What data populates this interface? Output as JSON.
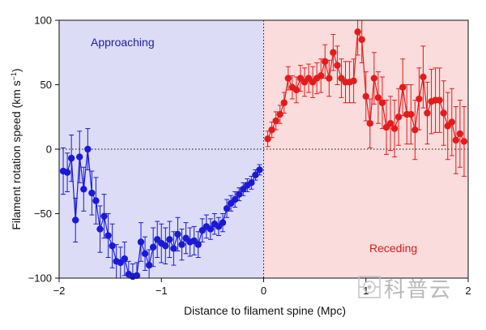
{
  "chart_data": {
    "type": "scatter",
    "title": "",
    "xlabel": "Distance to filament spine (Mpc)",
    "ylabel_main": "Filament rotation speed (km s",
    "ylabel_sup": "−1",
    "ylabel_close": ")",
    "xlim": [
      -2,
      2
    ],
    "ylim": [
      -100,
      100
    ],
    "xticks": [
      -2,
      -1,
      0,
      1,
      2
    ],
    "xtick_labels": [
      "−2",
      "−1",
      "0",
      "1",
      "2"
    ],
    "yticks": [
      -100,
      -50,
      0,
      50,
      100
    ],
    "ytick_labels": [
      "−100",
      "−50",
      "0",
      "50",
      "100"
    ],
    "reference_lines": [
      {
        "axis": "y",
        "value": 0,
        "style": "dotted"
      },
      {
        "axis": "x",
        "value": 0,
        "style": "dotted"
      }
    ],
    "regions": [
      {
        "label": "Approaching",
        "x_range": [
          -2,
          0
        ],
        "fill": "#dcdcf7",
        "text_color": "#1c1cb4"
      },
      {
        "label": "Receding",
        "x_range": [
          0,
          2
        ],
        "fill": "#fbdcdc",
        "text_color": "#d81b1b"
      }
    ],
    "series": [
      {
        "color": "#1a1ad6",
        "points": [
          {
            "x": -1.96,
            "y": -17,
            "err": 18
          },
          {
            "x": -1.92,
            "y": -18,
            "err": 15
          },
          {
            "x": -1.88,
            "y": -7,
            "err": 18
          },
          {
            "x": -1.84,
            "y": -55,
            "err": 17
          },
          {
            "x": -1.8,
            "y": -6,
            "err": 20
          },
          {
            "x": -1.76,
            "y": -31,
            "err": 17
          },
          {
            "x": -1.72,
            "y": 0,
            "err": 16
          },
          {
            "x": -1.68,
            "y": -34,
            "err": 17
          },
          {
            "x": -1.64,
            "y": -40,
            "err": 18
          },
          {
            "x": -1.6,
            "y": -62,
            "err": 18
          },
          {
            "x": -1.56,
            "y": -52,
            "err": 17
          },
          {
            "x": -1.52,
            "y": -67,
            "err": 17
          },
          {
            "x": -1.48,
            "y": -75,
            "err": 17
          },
          {
            "x": -1.44,
            "y": -87,
            "err": 13
          },
          {
            "x": -1.4,
            "y": -88,
            "err": 12
          },
          {
            "x": -1.36,
            "y": -85,
            "err": 13
          },
          {
            "x": -1.32,
            "y": -97,
            "err": 10
          },
          {
            "x": -1.28,
            "y": -99,
            "err": 10
          },
          {
            "x": -1.24,
            "y": -98,
            "err": 10
          },
          {
            "x": -1.2,
            "y": -72,
            "err": 15
          },
          {
            "x": -1.16,
            "y": -81,
            "err": 13
          },
          {
            "x": -1.12,
            "y": -90,
            "err": 12
          },
          {
            "x": -1.08,
            "y": -76,
            "err": 15
          },
          {
            "x": -1.04,
            "y": -70,
            "err": 14
          },
          {
            "x": -1.0,
            "y": -73,
            "err": 15
          },
          {
            "x": -0.96,
            "y": -75,
            "err": 14
          },
          {
            "x": -0.92,
            "y": -70,
            "err": 14
          },
          {
            "x": -0.88,
            "y": -77,
            "err": 13
          },
          {
            "x": -0.84,
            "y": -66,
            "err": 13
          },
          {
            "x": -0.8,
            "y": -74,
            "err": 12
          },
          {
            "x": -0.76,
            "y": -69,
            "err": 12
          },
          {
            "x": -0.72,
            "y": -72,
            "err": 11
          },
          {
            "x": -0.68,
            "y": -71,
            "err": 11
          },
          {
            "x": -0.64,
            "y": -74,
            "err": 10
          },
          {
            "x": -0.6,
            "y": -63,
            "err": 9
          },
          {
            "x": -0.56,
            "y": -60,
            "err": 9
          },
          {
            "x": -0.52,
            "y": -62,
            "err": 8
          },
          {
            "x": -0.48,
            "y": -58,
            "err": 8
          },
          {
            "x": -0.44,
            "y": -60,
            "err": 7
          },
          {
            "x": -0.4,
            "y": -57,
            "err": 7
          },
          {
            "x": -0.36,
            "y": -46,
            "err": 7
          },
          {
            "x": -0.32,
            "y": -42,
            "err": 6
          },
          {
            "x": -0.28,
            "y": -39,
            "err": 6
          },
          {
            "x": -0.24,
            "y": -35,
            "err": 5
          },
          {
            "x": -0.2,
            "y": -31,
            "err": 5
          },
          {
            "x": -0.16,
            "y": -28,
            "err": 5
          },
          {
            "x": -0.12,
            "y": -26,
            "err": 5
          },
          {
            "x": -0.08,
            "y": -20,
            "err": 4
          },
          {
            "x": -0.04,
            "y": -16,
            "err": 4
          }
        ]
      },
      {
        "color": "#e41b1b",
        "points": [
          {
            "x": 0.04,
            "y": 8,
            "err": 6
          },
          {
            "x": 0.08,
            "y": 15,
            "err": 6
          },
          {
            "x": 0.12,
            "y": 22,
            "err": 7
          },
          {
            "x": 0.16,
            "y": 27,
            "err": 7
          },
          {
            "x": 0.2,
            "y": 36,
            "err": 8
          },
          {
            "x": 0.24,
            "y": 55,
            "err": 9
          },
          {
            "x": 0.28,
            "y": 48,
            "err": 9
          },
          {
            "x": 0.32,
            "y": 46,
            "err": 10
          },
          {
            "x": 0.36,
            "y": 55,
            "err": 10
          },
          {
            "x": 0.4,
            "y": 52,
            "err": 11
          },
          {
            "x": 0.44,
            "y": 55,
            "err": 11
          },
          {
            "x": 0.48,
            "y": 52,
            "err": 12
          },
          {
            "x": 0.52,
            "y": 55,
            "err": 12
          },
          {
            "x": 0.56,
            "y": 57,
            "err": 13
          },
          {
            "x": 0.6,
            "y": 68,
            "err": 13
          },
          {
            "x": 0.64,
            "y": 55,
            "err": 14
          },
          {
            "x": 0.68,
            "y": 75,
            "err": 14
          },
          {
            "x": 0.72,
            "y": 65,
            "err": 15
          },
          {
            "x": 0.76,
            "y": 55,
            "err": 15
          },
          {
            "x": 0.8,
            "y": 52,
            "err": 16
          },
          {
            "x": 0.84,
            "y": 52,
            "err": 16
          },
          {
            "x": 0.88,
            "y": 53,
            "err": 17
          },
          {
            "x": 0.92,
            "y": 91,
            "err": 18
          },
          {
            "x": 0.96,
            "y": 85,
            "err": 18
          },
          {
            "x": 1.0,
            "y": 41,
            "err": 19
          },
          {
            "x": 1.04,
            "y": 20,
            "err": 19
          },
          {
            "x": 1.08,
            "y": 55,
            "err": 20
          },
          {
            "x": 1.12,
            "y": 40,
            "err": 20
          },
          {
            "x": 1.16,
            "y": 36,
            "err": 20
          },
          {
            "x": 1.2,
            "y": 17,
            "err": 21
          },
          {
            "x": 1.24,
            "y": 20,
            "err": 21
          },
          {
            "x": 1.28,
            "y": 16,
            "err": 22
          },
          {
            "x": 1.32,
            "y": 25,
            "err": 22
          },
          {
            "x": 1.36,
            "y": 48,
            "err": 22
          },
          {
            "x": 1.4,
            "y": 27,
            "err": 23
          },
          {
            "x": 1.44,
            "y": 27,
            "err": 23
          },
          {
            "x": 1.48,
            "y": 15,
            "err": 23
          },
          {
            "x": 1.52,
            "y": 39,
            "err": 24
          },
          {
            "x": 1.56,
            "y": 56,
            "err": 24
          },
          {
            "x": 1.6,
            "y": 28,
            "err": 24
          },
          {
            "x": 1.64,
            "y": 37,
            "err": 25
          },
          {
            "x": 1.68,
            "y": 38,
            "err": 25
          },
          {
            "x": 1.72,
            "y": 38,
            "err": 25
          },
          {
            "x": 1.76,
            "y": 28,
            "err": 25
          },
          {
            "x": 1.8,
            "y": 18,
            "err": 26
          },
          {
            "x": 1.84,
            "y": 21,
            "err": 26
          },
          {
            "x": 1.88,
            "y": 7,
            "err": 26
          },
          {
            "x": 1.92,
            "y": 12,
            "err": 26
          },
          {
            "x": 1.96,
            "y": 6,
            "err": 27
          }
        ]
      }
    ]
  },
  "watermark": {
    "text": "科普云"
  }
}
